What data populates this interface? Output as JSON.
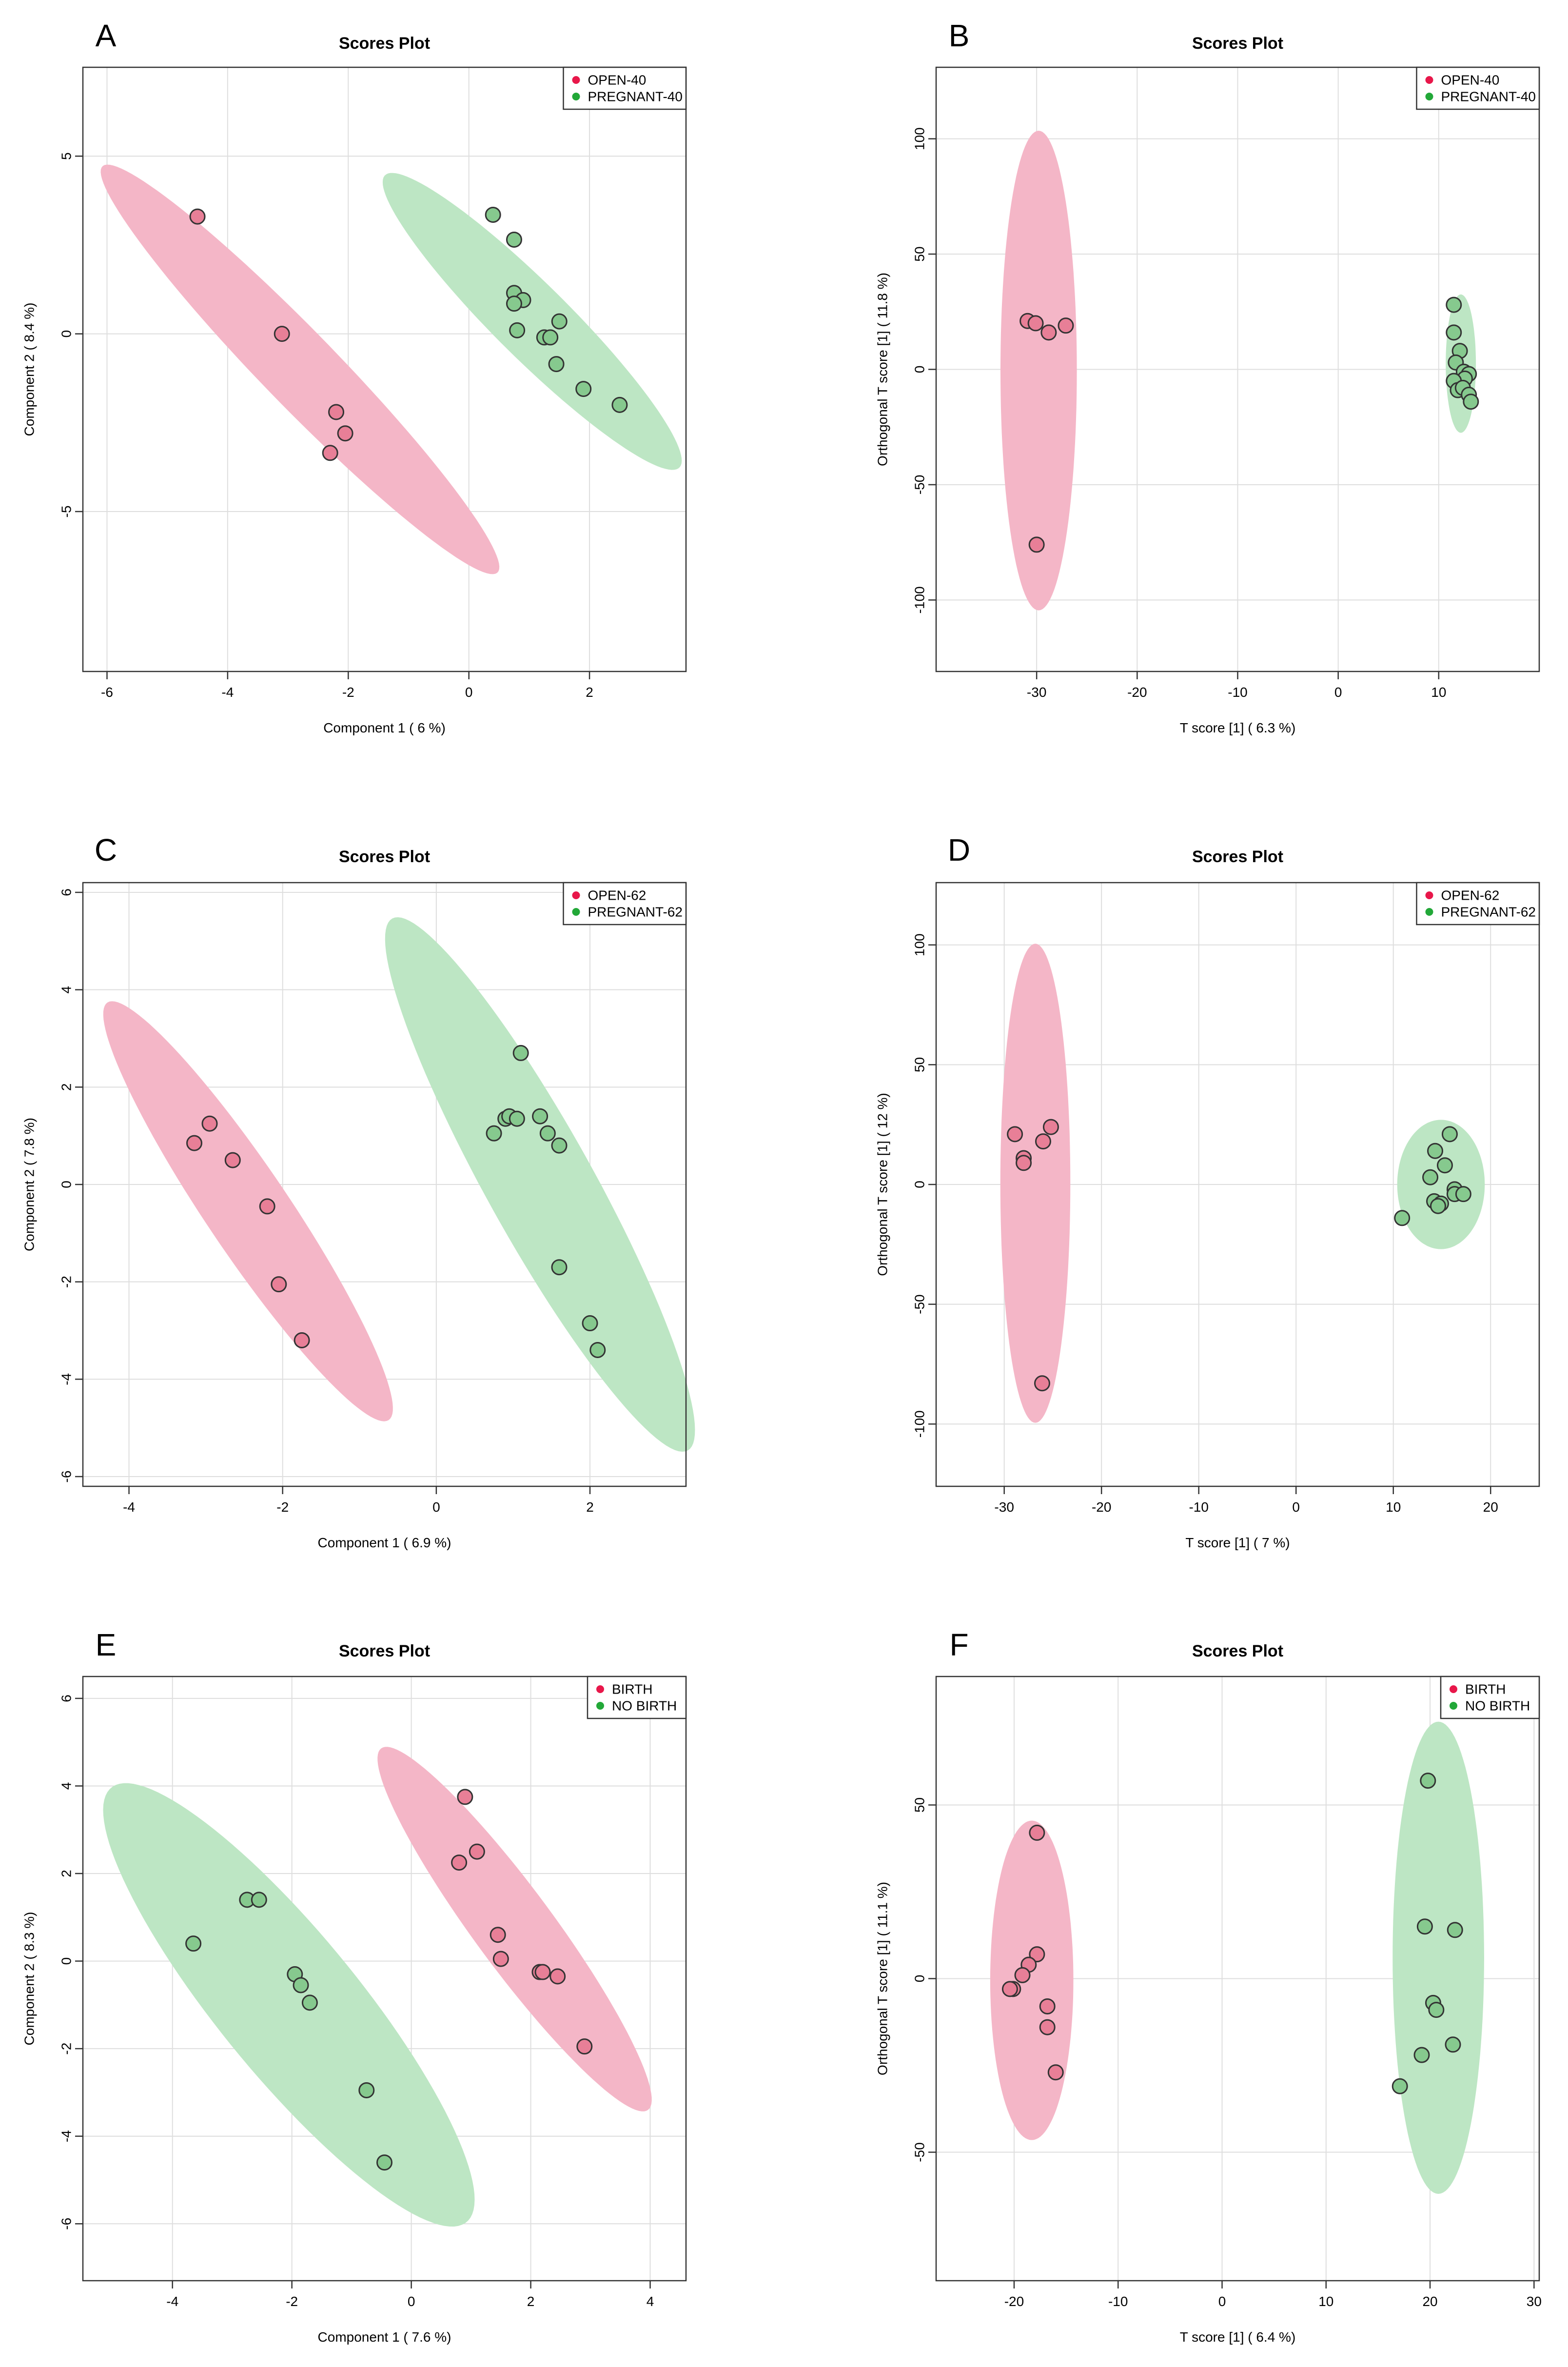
{
  "chart_data": [
    {
      "id": "A",
      "letter": "A",
      "type": "scatter",
      "title": "Scores Plot",
      "xlabel": "Component 1 ( 6 %)",
      "ylabel": "Component 2 ( 8.4 %)",
      "xlim": [
        -6.4,
        3.6
      ],
      "ylim": [
        -9.5,
        7.5
      ],
      "xticks": [
        -6,
        -4,
        -2,
        0,
        2
      ],
      "xtick_labels": [
        "-6",
        "-4",
        "-2",
        "0",
        "2"
      ],
      "yticks": [
        -5,
        0,
        5
      ],
      "ytick_labels": [
        "-5",
        "0",
        "5"
      ],
      "legend_position": "top-right",
      "series": [
        {
          "name": "OPEN-40",
          "color": "#e8174a",
          "fill": "#e87f97",
          "ellipse_color": "#f4b6c7",
          "points": [
            [
              -4.5,
              3.3
            ],
            [
              -3.1,
              0.0
            ],
            [
              -2.2,
              -2.2
            ],
            [
              -2.05,
              -2.8
            ],
            [
              -2.3,
              -3.35
            ]
          ],
          "ellipse": {
            "cx": -2.8,
            "cy": -1.0,
            "rx": 6.6,
            "ry": 0.75,
            "angle_deg": -60.6
          }
        },
        {
          "name": "PREGNANT-40",
          "color": "#22a838",
          "fill": "#86c98e",
          "ellipse_color": "#bde6c4",
          "points": [
            [
              0.4,
              3.35
            ],
            [
              0.75,
              2.65
            ],
            [
              0.75,
              1.15
            ],
            [
              0.9,
              0.95
            ],
            [
              0.75,
              0.85
            ],
            [
              0.8,
              0.1
            ],
            [
              1.25,
              -0.1
            ],
            [
              1.35,
              -0.1
            ],
            [
              1.5,
              0.35
            ],
            [
              1.45,
              -0.85
            ],
            [
              1.9,
              -1.55
            ],
            [
              2.5,
              -2.0
            ]
          ]
        }
      ],
      "ellipse_B": {
        "cx": 1.05,
        "cy": 0.35,
        "rx": 4.8,
        "ry": 0.75,
        "angle_deg": -60.1
      }
    },
    {
      "id": "B",
      "letter": "B",
      "type": "scatter",
      "title": "Scores Plot",
      "xlabel": "T score [1] ( 6.3 %)",
      "ylabel": "Orthogonal T score [1] ( 11.8 %)",
      "xlim": [
        -40,
        20
      ],
      "ylim": [
        -131,
        131
      ],
      "xticks": [
        -30,
        -20,
        -10,
        0,
        10
      ],
      "xtick_labels": [
        "-30",
        "-20",
        "-10",
        "0",
        "10"
      ],
      "yticks": [
        -100,
        -50,
        0,
        50,
        100
      ],
      "ytick_labels": [
        "-100",
        "-50",
        "0",
        "50",
        "100"
      ],
      "legend_position": "top-right",
      "series": [
        {
          "name": "OPEN-40",
          "color": "#e8174a",
          "fill": "#e87f97",
          "ellipse_color": "#f4b6c7",
          "points": [
            [
              -30.9,
              21
            ],
            [
              -30.1,
              20
            ],
            [
              -28.8,
              16
            ],
            [
              -27.1,
              19
            ],
            [
              -30.0,
              -76
            ]
          ],
          "ellipse": {
            "cx": -29.8,
            "cy": -0.5,
            "rx": 3.8,
            "ry": 104,
            "angle_deg": 0
          }
        },
        {
          "name": "PREGNANT-40",
          "color": "#22a838",
          "fill": "#86c98e",
          "ellipse_color": "#bde6c4",
          "points": [
            [
              11.5,
              28
            ],
            [
              11.5,
              16
            ],
            [
              12.1,
              8
            ],
            [
              11.7,
              3
            ],
            [
              12.5,
              -1
            ],
            [
              13.0,
              -2
            ],
            [
              12.6,
              -4
            ],
            [
              11.5,
              -5
            ],
            [
              11.9,
              -9
            ],
            [
              12.4,
              -8
            ],
            [
              13.0,
              -11
            ],
            [
              13.2,
              -14
            ]
          ],
          "ellipse": {
            "cx": 12.2,
            "cy": 2.5,
            "rx": 1.5,
            "ry": 30,
            "angle_deg": 0
          }
        }
      ]
    },
    {
      "id": "C",
      "letter": "C",
      "type": "scatter",
      "title": "Scores Plot",
      "xlabel": "Component 1 ( 6.9 %)",
      "ylabel": "Component 2 ( 7.8 %)",
      "xlim": [
        -4.6,
        3.25
      ],
      "ylim": [
        -6.2,
        6.2
      ],
      "xticks": [
        -4,
        -2,
        0,
        2
      ],
      "xtick_labels": [
        "-4",
        "-2",
        "0",
        "2"
      ],
      "yticks": [
        -6,
        -4,
        -2,
        0,
        2,
        4,
        6
      ],
      "ytick_labels": [
        "-6",
        "-4",
        "-2",
        "0",
        "2",
        "4",
        "6"
      ],
      "legend_position": "top-right",
      "series": [
        {
          "name": "OPEN-62",
          "color": "#e8174a",
          "fill": "#e87f97",
          "ellipse_color": "#f4b6c7",
          "points": [
            [
              -3.15,
              0.85
            ],
            [
              -2.95,
              1.25
            ],
            [
              -2.65,
              0.5
            ],
            [
              -2.2,
              -0.45
            ],
            [
              -2.05,
              -2.05
            ],
            [
              -1.75,
              -3.2
            ]
          ],
          "ellipse": {
            "cx": -2.45,
            "cy": -0.55,
            "rx": 4.67,
            "ry": 0.6,
            "angle_deg": -67.3
          }
        },
        {
          "name": "PREGNANT-62",
          "color": "#22a838",
          "fill": "#86c98e",
          "ellipse_color": "#bde6c4",
          "points": [
            [
              1.1,
              2.7
            ],
            [
              0.9,
              1.35
            ],
            [
              0.95,
              1.4
            ],
            [
              1.05,
              1.35
            ],
            [
              0.75,
              1.05
            ],
            [
              1.35,
              1.4
            ],
            [
              1.45,
              1.05
            ],
            [
              1.6,
              0.8
            ],
            [
              1.6,
              -1.7
            ],
            [
              2.0,
              -2.85
            ],
            [
              2.1,
              -3.4
            ]
          ],
          "ellipse": {
            "cx": 1.35,
            "cy": 0.0,
            "rx": 5.8,
            "ry": 0.75,
            "angle_deg": -71
          }
        }
      ]
    },
    {
      "id": "D",
      "letter": "D",
      "type": "scatter",
      "title": "Scores Plot",
      "xlabel": "T score [1] ( 7 %)",
      "ylabel": "Orthogonal T score [1] ( 12 %)",
      "xlim": [
        -37,
        25
      ],
      "ylim": [
        -126,
        126
      ],
      "xticks": [
        -30,
        -20,
        -10,
        0,
        10,
        20
      ],
      "xtick_labels": [
        "-30",
        "-20",
        "-10",
        "0",
        "10",
        "20"
      ],
      "yticks": [
        -100,
        -50,
        0,
        50,
        100
      ],
      "ytick_labels": [
        "-100",
        "-50",
        "0",
        "50",
        "100"
      ],
      "legend_position": "top-right",
      "series": [
        {
          "name": "OPEN-62",
          "color": "#e8174a",
          "fill": "#e87f97",
          "ellipse_color": "#f4b6c7",
          "points": [
            [
              -28.9,
              21
            ],
            [
              -28.0,
              11
            ],
            [
              -28.0,
              9
            ],
            [
              -25.2,
              24
            ],
            [
              -26.0,
              18
            ],
            [
              -26.1,
              -83
            ]
          ],
          "ellipse": {
            "cx": -26.8,
            "cy": 0.5,
            "rx": 3.6,
            "ry": 100,
            "angle_deg": 0
          }
        },
        {
          "name": "PREGNANT-62",
          "color": "#22a838",
          "fill": "#86c98e",
          "ellipse_color": "#bde6c4",
          "points": [
            [
              15.8,
              21
            ],
            [
              14.3,
              14
            ],
            [
              15.3,
              8
            ],
            [
              13.8,
              3
            ],
            [
              16.3,
              -2
            ],
            [
              16.3,
              -4
            ],
            [
              17.2,
              -4
            ],
            [
              14.2,
              -7
            ],
            [
              14.9,
              -8
            ],
            [
              14.6,
              -9
            ],
            [
              10.9,
              -14
            ]
          ],
          "ellipse": {
            "cx": 14.9,
            "cy": 0.0,
            "rx": 4.5,
            "ry": 27,
            "angle_deg": 0
          }
        }
      ]
    },
    {
      "id": "E",
      "letter": "E",
      "type": "scatter",
      "title": "Scores Plot",
      "xlabel": "Component 1 ( 7.6 %)",
      "ylabel": "Component 2 ( 8.3 %)",
      "xlim": [
        -5.5,
        4.6
      ],
      "ylim": [
        -7.3,
        6.5
      ],
      "xticks": [
        -4,
        -2,
        0,
        2,
        4
      ],
      "xtick_labels": [
        "-4",
        "-2",
        "0",
        "2",
        "4"
      ],
      "yticks": [
        -6,
        -4,
        -2,
        0,
        2,
        4,
        6
      ],
      "ytick_labels": [
        "-6",
        "-4",
        "-2",
        "0",
        "2",
        "4",
        "6"
      ],
      "legend_position": "top-right",
      "series": [
        {
          "name": "BIRTH",
          "color": "#e8174a",
          "fill": "#e87f97",
          "ellipse_color": "#f4b6c7",
          "points": [
            [
              0.9,
              3.75
            ],
            [
              1.1,
              2.5
            ],
            [
              0.8,
              2.25
            ],
            [
              1.45,
              0.6
            ],
            [
              1.5,
              0.05
            ],
            [
              2.15,
              -0.25
            ],
            [
              2.2,
              -0.25
            ],
            [
              2.45,
              -0.35
            ],
            [
              2.9,
              -1.95
            ]
          ],
          "ellipse": {
            "cx": 1.73,
            "cy": 0.73,
            "rx": 4.7,
            "ry": 0.72,
            "angle_deg": -62
          }
        },
        {
          "name": "NO BIRTH",
          "color": "#22a838",
          "fill": "#86c98e",
          "ellipse_color": "#bde6c4",
          "points": [
            [
              -3.65,
              0.4
            ],
            [
              -2.75,
              1.4
            ],
            [
              -2.55,
              1.4
            ],
            [
              -1.95,
              -0.3
            ],
            [
              -1.85,
              -0.55
            ],
            [
              -1.7,
              -0.95
            ],
            [
              -0.75,
              -2.95
            ],
            [
              -0.45,
              -4.6
            ]
          ],
          "ellipse": {
            "cx": -2.05,
            "cy": -1.0,
            "rx": 5.8,
            "ry": 1.3,
            "angle_deg": -60
          }
        }
      ]
    },
    {
      "id": "F",
      "letter": "F",
      "type": "scatter",
      "title": "Scores Plot",
      "xlabel": "T score [1] ( 6.4 %)",
      "ylabel": "Orthogonal T score [1] ( 11.1 %)",
      "xlim": [
        -27.5,
        30.5
      ],
      "ylim": [
        -87,
        87
      ],
      "xticks": [
        -20,
        -10,
        0,
        10,
        20,
        30
      ],
      "xtick_labels": [
        "-20",
        "-10",
        "0",
        "10",
        "20",
        "30"
      ],
      "yticks": [
        -50,
        0,
        50
      ],
      "ytick_labels": [
        "-50",
        "0",
        "50"
      ],
      "legend_position": "top-right",
      "series": [
        {
          "name": "BIRTH",
          "color": "#e8174a",
          "fill": "#e87f97",
          "ellipse_color": "#f4b6c7",
          "points": [
            [
              -17.8,
              42
            ],
            [
              -17.8,
              7
            ],
            [
              -18.6,
              4
            ],
            [
              -19.2,
              1
            ],
            [
              -20.1,
              -3
            ],
            [
              -20.4,
              -3
            ],
            [
              -16.8,
              -8
            ],
            [
              -16.8,
              -14
            ],
            [
              -16.0,
              -27
            ]
          ],
          "ellipse": {
            "cx": -18.3,
            "cy": -0.5,
            "rx": 4.0,
            "ry": 46,
            "angle_deg": 0
          }
        },
        {
          "name": "NO BIRTH",
          "color": "#22a838",
          "fill": "#86c98e",
          "ellipse_color": "#bde6c4",
          "points": [
            [
              19.8,
              57
            ],
            [
              19.5,
              15
            ],
            [
              22.4,
              14
            ],
            [
              20.3,
              -7
            ],
            [
              20.6,
              -9
            ],
            [
              19.2,
              -22
            ],
            [
              22.2,
              -19
            ],
            [
              17.1,
              -31
            ]
          ],
          "ellipse": {
            "cx": 20.8,
            "cy": 6,
            "rx": 4.4,
            "ry": 68,
            "angle_deg": 0
          }
        }
      ]
    }
  ]
}
